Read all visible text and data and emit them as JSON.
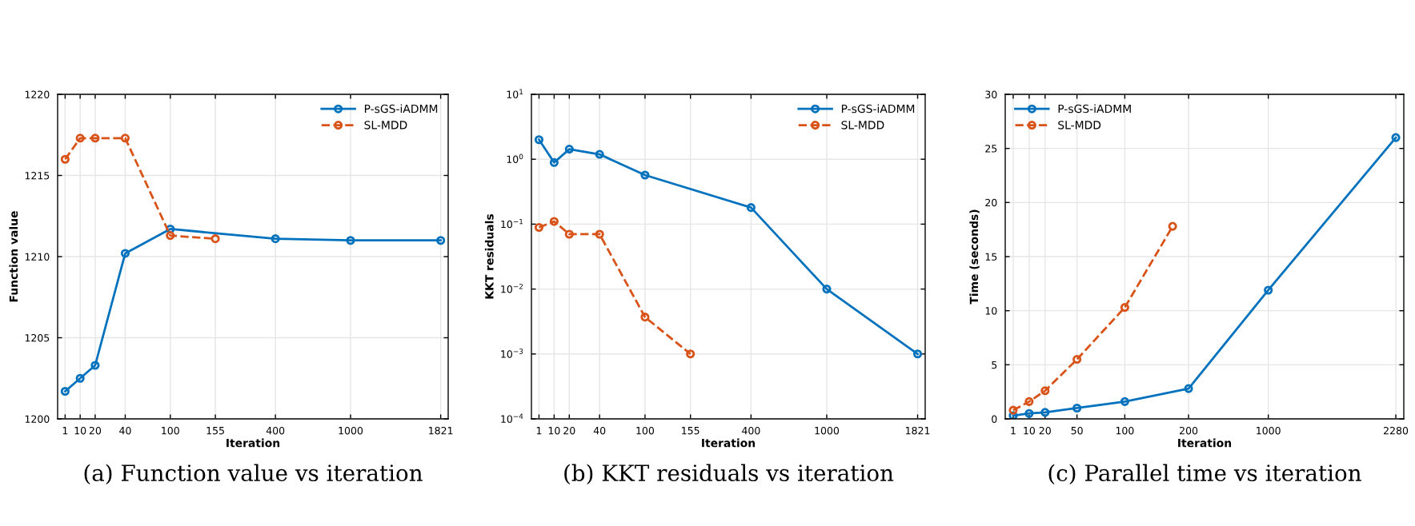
{
  "chart_data": [
    {
      "type": "line",
      "xlabel": "Iteration",
      "ylabel": "Function value",
      "annotations": [
        "(a) Function value vs iteration"
      ],
      "categories": [
        "1",
        "10",
        "20",
        null,
        "40",
        null,
        null,
        "100",
        null,
        null,
        "155",
        null,
        null,
        null,
        "400",
        null,
        null,
        null,
        null,
        "1000",
        null,
        null,
        null,
        null,
        null,
        "1821"
      ],
      "ylim": [
        1200,
        1220
      ],
      "yticks": [
        1200,
        1205,
        1210,
        1215,
        1220
      ],
      "grid": true,
      "legend": "top right",
      "marker": "circle",
      "series": [
        {
          "name": "P-sGS-iADMM",
          "color": "#0072bd",
          "line_style": "solid",
          "values": [
            1201.7,
            1202.5,
            1203.3,
            null,
            1210.2,
            null,
            null,
            1211.7,
            null,
            null,
            null,
            null,
            null,
            null,
            1211.1,
            null,
            null,
            null,
            null,
            1211.0,
            null,
            null,
            null,
            null,
            null,
            1211.0
          ]
        },
        {
          "name": "SL-MDD",
          "color": "#d95319",
          "line_style": "dashed",
          "values": [
            1216.0,
            1217.3,
            1217.3,
            null,
            1217.3,
            null,
            null,
            1211.3,
            null,
            null,
            1211.1,
            null,
            null,
            null,
            null,
            null,
            null,
            null,
            null,
            null,
            null,
            null,
            null,
            null,
            null,
            null
          ]
        }
      ]
    },
    {
      "type": "line",
      "xlabel": "Iteration",
      "ylabel": "KKT residuals",
      "annotations": [
        "(b) KKT residuals vs iteration"
      ],
      "log": "y",
      "categories": [
        "1",
        "10",
        "20",
        null,
        "40",
        null,
        null,
        "100",
        null,
        null,
        "155",
        null,
        null,
        null,
        "400",
        null,
        null,
        null,
        null,
        "1000",
        null,
        null,
        null,
        null,
        null,
        "1821"
      ],
      "ylim": [
        0.0001,
        10
      ],
      "yticks": [
        {
          "value": 0.0001,
          "label": "10$^{−4}$"
        },
        {
          "value": 0.001,
          "label": "10$^{−3}$"
        },
        {
          "value": 0.01,
          "label": "10$^{−2}$"
        },
        {
          "value": 0.1,
          "label": "10$^{−1}$"
        },
        {
          "value": 1,
          "label": "10$^{0}$"
        },
        {
          "value": 10,
          "label": "10$^{1}$"
        }
      ],
      "grid": true,
      "legend": "top right",
      "marker": "circle",
      "series": [
        {
          "name": "P-sGS-iADMM",
          "color": "#0072bd",
          "line_style": "solid",
          "values": [
            2.0,
            0.89,
            1.43,
            null,
            1.19,
            null,
            null,
            0.57,
            null,
            null,
            null,
            null,
            null,
            null,
            0.18,
            null,
            null,
            null,
            null,
            0.01,
            null,
            null,
            null,
            null,
            null,
            0.001
          ]
        },
        {
          "name": "SL-MDD",
          "color": "#d95319",
          "line_style": "dashed",
          "values": [
            0.089,
            0.11,
            0.07,
            null,
            0.07,
            null,
            null,
            0.0037,
            null,
            null,
            0.001,
            null,
            null,
            null,
            null,
            null,
            null,
            null,
            null,
            null,
            null,
            null,
            null,
            null,
            null,
            null
          ]
        }
      ]
    },
    {
      "type": "line",
      "xlabel": "Iteration",
      "ylabel": "Time (seconds)",
      "annotations": [
        "(c) Parallel time vs iteration"
      ],
      "categories": [
        "1",
        "10",
        "20",
        null,
        "50",
        null,
        null,
        "100",
        null,
        null,
        null,
        "200",
        null,
        null,
        null,
        null,
        "1000",
        null,
        null,
        null,
        null,
        null,
        null,
        null,
        "2280"
      ],
      "ylim": [
        0,
        30
      ],
      "yticks": [
        0,
        5,
        10,
        15,
        20,
        25,
        30
      ],
      "grid": true,
      "legend": "top left",
      "marker": "circle",
      "series": [
        {
          "name": "P-sGS-iADMM",
          "color": "#0072bd",
          "line_style": "solid",
          "values": [
            0.3,
            0.5,
            0.6,
            null,
            1.0,
            null,
            null,
            1.6,
            null,
            null,
            null,
            2.8,
            null,
            null,
            null,
            null,
            11.9,
            null,
            null,
            null,
            null,
            null,
            null,
            null,
            26.0
          ]
        },
        {
          "name": "SL-MDD",
          "color": "#d95319",
          "line_style": "dashed",
          "values": [
            0.8,
            1.6,
            2.6,
            null,
            5.5,
            null,
            null,
            10.3,
            null,
            null,
            17.8,
            null,
            null,
            null,
            null,
            null,
            null,
            null,
            null,
            null,
            null,
            null,
            null,
            null,
            null
          ]
        }
      ]
    }
  ]
}
